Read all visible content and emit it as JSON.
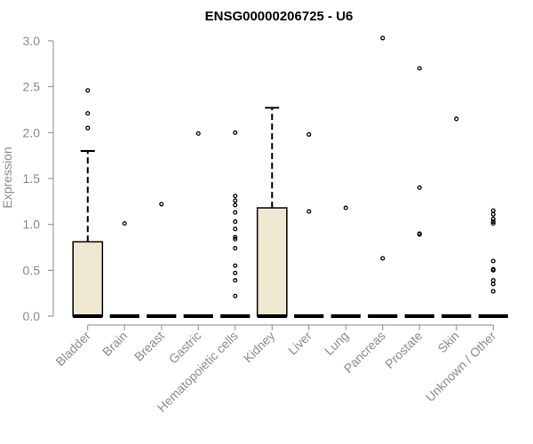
{
  "chart_data": {
    "type": "boxplot",
    "title": "ENSG00000206725 - U6",
    "xlabel": "",
    "ylabel": "Expression",
    "ylim": [
      0,
      3.0
    ],
    "yticks": [
      "0.0",
      "0.5",
      "1.0",
      "1.5",
      "2.0",
      "2.5",
      "3.0"
    ],
    "grid": false,
    "box_color": "#ede8cf",
    "outline_color": "#000000",
    "categories": [
      "Bladder",
      "Brain",
      "Breast",
      "Gastric",
      "Hematopoietic cells",
      "Kidney",
      "Liver",
      "Lung",
      "Pancreas",
      "Prostate",
      "Skin",
      "Unknown / Other"
    ],
    "boxes": [
      {
        "category": "Bladder",
        "q1": 0,
        "median": 0,
        "q3": 0.81,
        "whisker_low": 0,
        "whisker_high": 1.8,
        "outliers": [
          2.05,
          2.21,
          2.46
        ]
      },
      {
        "category": "Brain",
        "q1": 0,
        "median": 0,
        "q3": 0,
        "whisker_low": 0,
        "whisker_high": 0,
        "outliers": [
          1.01
        ]
      },
      {
        "category": "Breast",
        "q1": 0,
        "median": 0,
        "q3": 0,
        "whisker_low": 0,
        "whisker_high": 0,
        "outliers": [
          1.22
        ]
      },
      {
        "category": "Gastric",
        "q1": 0,
        "median": 0,
        "q3": 0,
        "whisker_low": 0,
        "whisker_high": 0,
        "outliers": [
          1.99
        ]
      },
      {
        "category": "Hematopoietic cells",
        "q1": 0,
        "median": 0,
        "q3": 0,
        "whisker_low": 0,
        "whisker_high": 0,
        "outliers": [
          0.22,
          0.39,
          0.47,
          0.55,
          0.74,
          0.84,
          0.86,
          0.95,
          1.03,
          1.13,
          1.21,
          1.26,
          1.31,
          2.0
        ]
      },
      {
        "category": "Kidney",
        "q1": 0,
        "median": 0,
        "q3": 1.18,
        "whisker_low": 0,
        "whisker_high": 2.27,
        "outliers": []
      },
      {
        "category": "Liver",
        "q1": 0,
        "median": 0,
        "q3": 0,
        "whisker_low": 0,
        "whisker_high": 0,
        "outliers": [
          1.14,
          1.98
        ]
      },
      {
        "category": "Lung",
        "q1": 0,
        "median": 0,
        "q3": 0,
        "whisker_low": 0,
        "whisker_high": 0,
        "outliers": [
          1.18
        ]
      },
      {
        "category": "Pancreas",
        "q1": 0,
        "median": 0,
        "q3": 0,
        "whisker_low": 0,
        "whisker_high": 0,
        "outliers": [
          0.63,
          3.03
        ]
      },
      {
        "category": "Prostate",
        "q1": 0,
        "median": 0,
        "q3": 0,
        "whisker_low": 0,
        "whisker_high": 0,
        "outliers": [
          0.89,
          0.9,
          1.4,
          2.7
        ]
      },
      {
        "category": "Skin",
        "q1": 0,
        "median": 0,
        "q3": 0,
        "whisker_low": 0,
        "whisker_high": 0,
        "outliers": [
          2.15
        ]
      },
      {
        "category": "Unknown / Other",
        "q1": 0,
        "median": 0,
        "q3": 0,
        "whisker_low": 0,
        "whisker_high": 0,
        "outliers": [
          0.27,
          0.35,
          0.39,
          0.5,
          0.51,
          0.6,
          1.01,
          1.03,
          1.06,
          1.11,
          1.15
        ]
      }
    ]
  }
}
